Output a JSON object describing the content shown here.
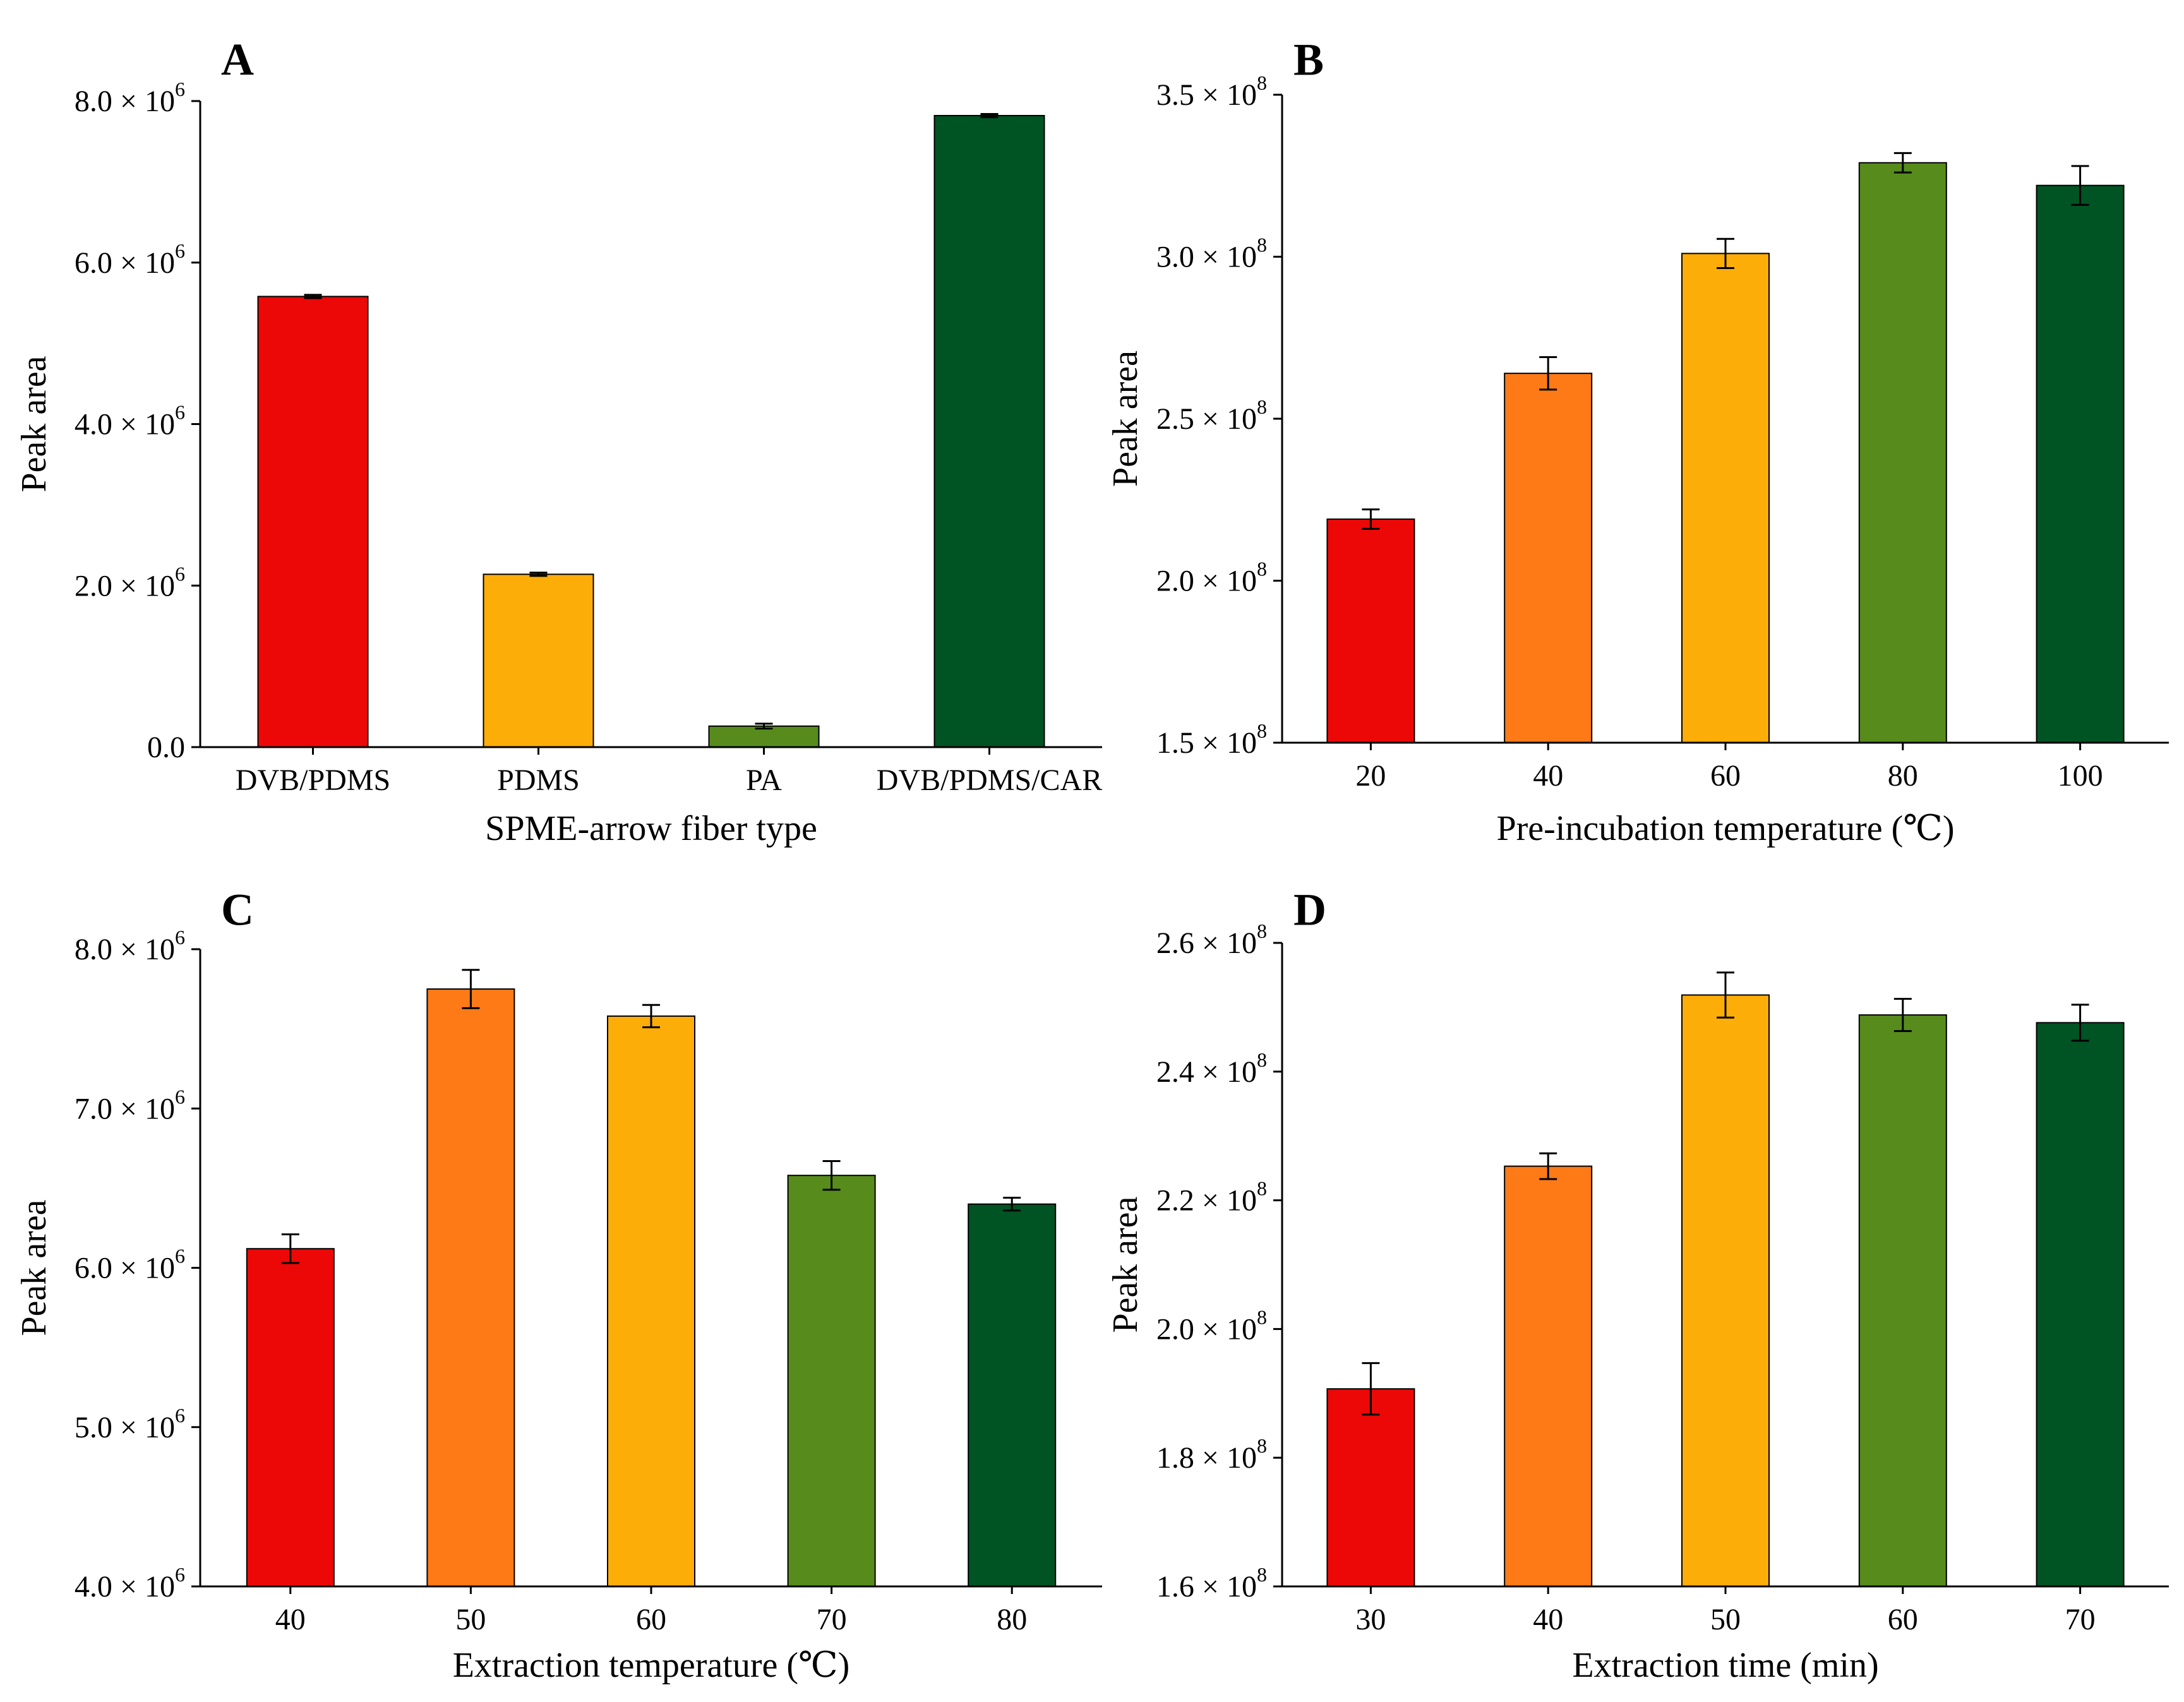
{
  "chart_data": [
    {
      "type": "bar",
      "panel": "A",
      "categories": [
        "DVB/PDMS",
        "PDMS",
        "PA",
        "DVB/PDMS/CAR"
      ],
      "values": [
        5.58,
        2.14,
        0.26,
        7.82
      ],
      "errors": [
        0.02,
        0.02,
        0.03,
        0.02
      ],
      "colors": [
        "#ec0806",
        "#fdad07",
        "#578c1c",
        "#005323"
      ],
      "xlabel": "SPME-arrow fiber type",
      "ylabel": "Peak area",
      "ylim": [
        0,
        8
      ],
      "yticks": [
        0,
        2,
        4,
        6,
        8
      ],
      "ytick_labels": [
        "0.0",
        "2.0 × 10",
        "4.0 × 10",
        "6.0 × 10",
        "8.0 × 10"
      ],
      "ytick_exponent": "6",
      "grid": false,
      "legend": "none"
    },
    {
      "type": "bar",
      "panel": "B",
      "categories": [
        "20",
        "40",
        "60",
        "80",
        "100"
      ],
      "values": [
        2.19,
        2.64,
        3.01,
        3.29,
        3.22
      ],
      "errors": [
        0.03,
        0.05,
        0.045,
        0.03,
        0.06
      ],
      "colors": [
        "#ec0806",
        "#fd7a17",
        "#fdad07",
        "#578c1c",
        "#005323"
      ],
      "xlabel": "Pre-incubation temperature (℃)",
      "ylabel": "Peak area",
      "ylim": [
        1.5,
        3.5
      ],
      "yticks": [
        1.5,
        2.0,
        2.5,
        3.0,
        3.5
      ],
      "ytick_labels": [
        "1.5 × 10",
        "2.0 × 10",
        "2.5 × 10",
        "3.0 × 10",
        "3.5 × 10"
      ],
      "ytick_exponent": "8",
      "grid": false,
      "legend": "none"
    },
    {
      "type": "bar",
      "panel": "C",
      "categories": [
        "40",
        "50",
        "60",
        "70",
        "80"
      ],
      "values": [
        6.12,
        7.75,
        7.58,
        6.58,
        6.4
      ],
      "errors": [
        0.09,
        0.12,
        0.07,
        0.09,
        0.04
      ],
      "colors": [
        "#ec0806",
        "#fd7a17",
        "#fdad07",
        "#578c1c",
        "#005323"
      ],
      "xlabel": "Extraction temperature (℃)",
      "ylabel": "Peak area",
      "ylim": [
        4.0,
        8.0
      ],
      "yticks": [
        4.0,
        5.0,
        6.0,
        7.0,
        8.0
      ],
      "ytick_labels": [
        "4.0 × 10",
        "5.0 × 10",
        "6.0 × 10",
        "7.0 × 10",
        "8.0 × 10"
      ],
      "ytick_exponent": "6",
      "grid": false,
      "legend": "none"
    },
    {
      "type": "bar",
      "panel": "D",
      "categories": [
        "30",
        "40",
        "50",
        "60",
        "70"
      ],
      "values": [
        1.907,
        2.253,
        2.519,
        2.488,
        2.476
      ],
      "errors": [
        0.04,
        0.02,
        0.035,
        0.025,
        0.028
      ],
      "colors": [
        "#ec0806",
        "#fd7a17",
        "#fdad07",
        "#578c1c",
        "#005323"
      ],
      "xlabel": "Extraction time (min)",
      "ylabel": "Peak area",
      "ylim": [
        1.6,
        2.6
      ],
      "yticks": [
        1.6,
        1.8,
        2.0,
        2.2,
        2.4,
        2.6
      ],
      "ytick_labels": [
        "1.6 × 10",
        "1.8 × 10",
        "2.0 × 10",
        "2.2 × 10",
        "2.4 × 10",
        "2.6 × 10"
      ],
      "ytick_exponent": "8",
      "grid": false,
      "legend": "none"
    }
  ]
}
